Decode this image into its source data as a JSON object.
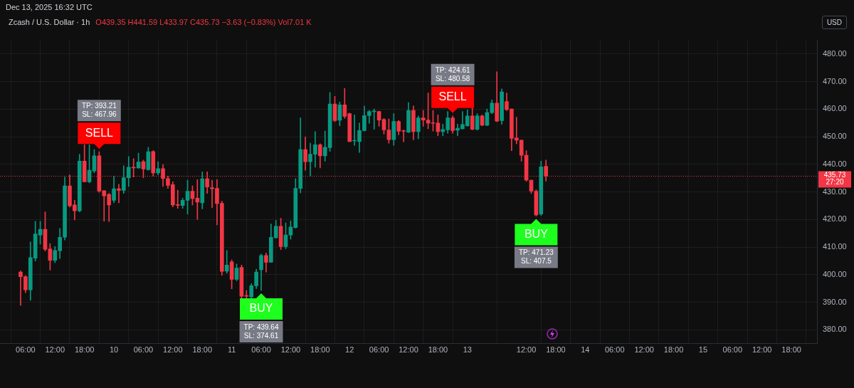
{
  "chart_data": {
    "type": "candlestick",
    "title": "Dec 13, 2025 16:32 UTC",
    "subtitle": "Zcash / U.S. Dollar · 1h",
    "x": [
      "2025-12-09T05:00",
      "2025-12-09T06:00",
      "2025-12-09T07:00",
      "2025-12-09T08:00",
      "2025-12-09T09:00",
      "2025-12-09T10:00",
      "2025-12-09T11:00",
      "2025-12-09T12:00",
      "2025-12-09T13:00",
      "2025-12-09T14:00",
      "2025-12-09T15:00",
      "2025-12-09T16:00",
      "2025-12-09T17:00",
      "2025-12-09T18:00",
      "2025-12-09T19:00",
      "2025-12-09T20:00",
      "2025-12-09T21:00",
      "2025-12-09T22:00",
      "2025-12-09T23:00",
      "2025-12-10T00:00",
      "2025-12-10T01:00",
      "2025-12-10T02:00",
      "2025-12-10T03:00",
      "2025-12-10T04:00",
      "2025-12-10T05:00",
      "2025-12-10T06:00",
      "2025-12-10T07:00",
      "2025-12-10T08:00",
      "2025-12-10T09:00",
      "2025-12-10T10:00",
      "2025-12-10T11:00",
      "2025-12-10T12:00",
      "2025-12-10T13:00",
      "2025-12-10T14:00",
      "2025-12-10T15:00",
      "2025-12-10T16:00",
      "2025-12-10T17:00",
      "2025-12-10T18:00",
      "2025-12-10T19:00",
      "2025-12-10T20:00",
      "2025-12-10T21:00",
      "2025-12-10T22:00",
      "2025-12-10T23:00",
      "2025-12-11T00:00",
      "2025-12-11T01:00",
      "2025-12-11T02:00",
      "2025-12-11T03:00",
      "2025-12-11T04:00",
      "2025-12-11T05:00",
      "2025-12-11T06:00",
      "2025-12-11T07:00",
      "2025-12-11T08:00",
      "2025-12-11T09:00",
      "2025-12-11T10:00",
      "2025-12-11T11:00",
      "2025-12-11T12:00",
      "2025-12-11T13:00",
      "2025-12-11T14:00",
      "2025-12-11T15:00",
      "2025-12-11T16:00",
      "2025-12-11T17:00",
      "2025-12-11T18:00",
      "2025-12-11T19:00",
      "2025-12-11T20:00",
      "2025-12-11T21:00",
      "2025-12-11T22:00",
      "2025-12-11T23:00",
      "2025-12-12T00:00",
      "2025-12-12T01:00",
      "2025-12-12T02:00",
      "2025-12-12T03:00",
      "2025-12-12T04:00",
      "2025-12-12T05:00",
      "2025-12-12T06:00",
      "2025-12-12T07:00",
      "2025-12-12T08:00",
      "2025-12-12T09:00",
      "2025-12-12T10:00",
      "2025-12-12T11:00",
      "2025-12-12T12:00",
      "2025-12-12T13:00",
      "2025-12-12T14:00",
      "2025-12-12T15:00",
      "2025-12-12T16:00",
      "2025-12-12T17:00",
      "2025-12-12T18:00",
      "2025-12-12T19:00",
      "2025-12-12T20:00",
      "2025-12-12T21:00",
      "2025-12-12T22:00",
      "2025-12-12T23:00",
      "2025-12-13T00:00",
      "2025-12-13T01:00",
      "2025-12-13T02:00",
      "2025-12-13T03:00",
      "2025-12-13T04:00",
      "2025-12-13T05:00",
      "2025-12-13T06:00",
      "2025-12-13T07:00",
      "2025-12-13T08:00",
      "2025-12-13T09:00",
      "2025-12-13T10:00",
      "2025-12-13T11:00",
      "2025-12-13T12:00",
      "2025-12-13T13:00",
      "2025-12-13T14:00",
      "2025-12-13T15:00",
      "2025-12-13T16:00"
    ],
    "ohlc": [
      [
        401.0,
        401.4,
        388.9,
        399.3
      ],
      [
        399.3,
        399.7,
        393.5,
        394.5
      ],
      [
        394.5,
        411.9,
        390.7,
        406.2
      ],
      [
        406.0,
        419.4,
        405.0,
        414.8
      ],
      [
        414.4,
        419.4,
        411.1,
        416.5
      ],
      [
        416.5,
        422.8,
        408.6,
        409.2
      ],
      [
        409.4,
        411.3,
        401.7,
        405.2
      ],
      [
        405.2,
        410.2,
        404.4,
        408.8
      ],
      [
        408.7,
        416.8,
        405.9,
        413.6
      ],
      [
        413.6,
        435.4,
        412.6,
        432.2
      ],
      [
        432.2,
        436.2,
        424.5,
        425.0
      ],
      [
        425.3,
        427.0,
        419.9,
        423.2
      ],
      [
        423.2,
        443.7,
        422.8,
        441.2
      ],
      [
        441.2,
        447.1,
        433.7,
        433.7
      ],
      [
        433.7,
        447.1,
        433.3,
        437.9
      ],
      [
        437.6,
        445.4,
        437.0,
        443.1
      ],
      [
        443.1,
        444.6,
        429.9,
        430.3
      ],
      [
        430.5,
        430.5,
        419.4,
        428.6
      ],
      [
        429.1,
        429.5,
        419.3,
        425.3
      ],
      [
        427.0,
        435.8,
        426.1,
        431.2
      ],
      [
        431.2,
        432.8,
        426.1,
        430.6
      ],
      [
        430.6,
        439.5,
        429.5,
        435.2
      ],
      [
        435.1,
        442.9,
        432.0,
        439.0
      ],
      [
        439.0,
        442.1,
        435.4,
        438.7
      ],
      [
        438.7,
        444.1,
        438.5,
        440.9
      ],
      [
        441.0,
        441.6,
        435.2,
        438.3
      ],
      [
        438.1,
        446.2,
        437.9,
        444.6
      ],
      [
        444.7,
        445.0,
        435.8,
        436.9
      ],
      [
        436.9,
        441.0,
        436.2,
        438.5
      ],
      [
        438.5,
        440.0,
        432.0,
        434.9
      ],
      [
        434.9,
        435.8,
        431.3,
        432.4
      ],
      [
        432.7,
        433.7,
        424.6,
        425.3
      ],
      [
        425.4,
        430.7,
        424.1,
        425.2
      ],
      [
        425.1,
        427.8,
        424.1,
        427.0
      ],
      [
        427.0,
        434.3,
        422.0,
        430.3
      ],
      [
        430.3,
        432.2,
        425.3,
        427.6
      ],
      [
        427.8,
        434.5,
        420.1,
        426.3
      ],
      [
        426.1,
        437.3,
        423.9,
        434.8
      ],
      [
        434.8,
        437.3,
        429.5,
        431.8
      ],
      [
        431.6,
        434.3,
        424.3,
        431.2
      ],
      [
        431.3,
        434.5,
        418.1,
        425.8
      ],
      [
        425.9,
        426.7,
        399.8,
        401.2
      ],
      [
        401.3,
        408.8,
        400.6,
        403.5
      ],
      [
        404.7,
        405.4,
        394.9,
        398.3
      ],
      [
        398.3,
        403.9,
        397.8,
        402.4
      ],
      [
        402.7,
        403.5,
        391.0,
        392.2
      ],
      [
        392.4,
        394.3,
        391.0,
        392.2
      ],
      [
        392.0,
        396.8,
        391.4,
        396.0
      ],
      [
        396.0,
        402.0,
        395.0,
        401.0
      ],
      [
        401.8,
        407.5,
        394.3,
        407.0
      ],
      [
        407.0,
        407.9,
        401.0,
        404.5
      ],
      [
        404.5,
        418.4,
        404.5,
        413.6
      ],
      [
        413.4,
        419.7,
        413.2,
        417.6
      ],
      [
        417.6,
        420.5,
        409.1,
        410.2
      ],
      [
        410.2,
        418.8,
        409.4,
        414.4
      ],
      [
        414.4,
        419.5,
        412.9,
        417.3
      ],
      [
        417.1,
        434.9,
        416.9,
        431.3
      ],
      [
        431.3,
        456.9,
        429.7,
        445.4
      ],
      [
        445.4,
        450.0,
        437.9,
        441.0
      ],
      [
        441.0,
        447.7,
        435.8,
        443.7
      ],
      [
        443.7,
        451.9,
        439.0,
        447.1
      ],
      [
        447.1,
        447.5,
        438.7,
        443.1
      ],
      [
        443.1,
        452.1,
        441.2,
        446.2
      ],
      [
        446.1,
        466.1,
        444.7,
        461.9
      ],
      [
        461.9,
        464.7,
        455.5,
        455.9
      ],
      [
        456.0,
        462.6,
        454.0,
        461.6
      ],
      [
        461.6,
        467.6,
        456.7,
        457.4
      ],
      [
        458.4,
        458.6,
        448.3,
        448.3
      ],
      [
        448.5,
        458.0,
        446.9,
        448.7
      ],
      [
        448.3,
        455.0,
        444.3,
        452.3
      ],
      [
        452.3,
        461.1,
        452.1,
        457.7
      ],
      [
        457.7,
        459.6,
        454.9,
        459.2
      ],
      [
        459.1,
        460.1,
        452.8,
        459.3
      ],
      [
        459.2,
        459.3,
        453.8,
        456.1
      ],
      [
        456.3,
        456.7,
        451.0,
        452.5
      ],
      [
        452.5,
        456.5,
        447.7,
        449.0
      ],
      [
        449.0,
        458.4,
        446.9,
        455.6
      ],
      [
        455.6,
        455.9,
        450.7,
        452.0
      ],
      [
        452.2,
        452.5,
        448.2,
        452.0
      ],
      [
        451.7,
        462.4,
        451.5,
        459.6
      ],
      [
        459.6,
        461.2,
        448.9,
        451.9
      ],
      [
        451.9,
        457.6,
        449.3,
        456.9
      ],
      [
        456.9,
        459.6,
        453.8,
        456.1
      ],
      [
        456.1,
        465.9,
        452.9,
        455.0
      ],
      [
        455.1,
        459.6,
        452.1,
        454.9
      ],
      [
        455.0,
        458.0,
        450.4,
        451.9
      ],
      [
        451.9,
        454.6,
        450.4,
        452.7
      ],
      [
        452.5,
        459.2,
        451.3,
        456.9
      ],
      [
        456.9,
        457.6,
        451.3,
        452.3
      ],
      [
        452.4,
        454.6,
        450.4,
        453.1
      ],
      [
        452.9,
        459.2,
        452.8,
        454.5
      ],
      [
        454.0,
        459.8,
        453.8,
        457.6
      ],
      [
        457.6,
        460.5,
        452.5,
        452.7
      ],
      [
        452.7,
        458.4,
        452.4,
        457.6
      ],
      [
        457.6,
        458.0,
        454.0,
        454.2
      ],
      [
        454.2,
        460.1,
        454.0,
        458.8
      ],
      [
        458.8,
        463.4,
        458.4,
        462.2
      ],
      [
        462.2,
        473.6,
        455.5,
        455.7
      ],
      [
        455.9,
        467.4,
        454.5,
        466.3
      ],
      [
        462.8,
        465.9,
        459.5,
        459.9
      ],
      [
        460.1,
        460.1,
        445.0,
        449.4
      ],
      [
        449.6,
        457.1,
        447.5,
        448.8
      ],
      [
        448.8,
        448.8,
        441.2,
        443.3
      ],
      [
        443.3,
        445.0,
        433.9,
        434.3
      ],
      [
        434.3,
        434.3,
        429.5,
        430.3
      ],
      [
        430.3,
        430.8,
        421.3,
        421.7
      ],
      [
        422.0,
        441.2,
        421.5,
        439.1
      ],
      [
        439.35,
        441.59,
        433.97,
        435.73
      ]
    ],
    "colors": [
      "#f23645",
      "#f23645",
      "#089981",
      "#089981",
      "#089981",
      "#f23645",
      "#f23645",
      "#089981",
      "#089981",
      "#089981",
      "#f23645",
      "#f23645",
      "#089981",
      "#f23645",
      "#089981",
      "#089981",
      "#f23645",
      "#f23645",
      "#f23645",
      "#089981",
      "#f23645",
      "#089981",
      "#089981",
      "#f23645",
      "#089981",
      "#f23645",
      "#089981",
      "#f23645",
      "#089981",
      "#f23645",
      "#f23645",
      "#f23645",
      "#f23645",
      "#089981",
      "#089981",
      "#f23645",
      "#f23645",
      "#089981",
      "#f23645",
      "#f23645",
      "#f23645",
      "#f23645",
      "#089981",
      "#f23645",
      "#089981",
      "#f23645",
      "#f23645",
      "#089981",
      "#089981",
      "#089981",
      "#f23645",
      "#089981",
      "#089981",
      "#f23645",
      "#089981",
      "#089981",
      "#089981",
      "#089981",
      "#f23645",
      "#089981",
      "#089981",
      "#f23645",
      "#089981",
      "#089981",
      "#f23645",
      "#089981",
      "#f23645",
      "#f23645",
      "#089981",
      "#089981",
      "#089981",
      "#089981",
      "#089981",
      "#f23645",
      "#f23645",
      "#f23645",
      "#089981",
      "#f23645",
      "#f23645",
      "#089981",
      "#f23645",
      "#089981",
      "#f23645",
      "#f23645",
      "#f23645",
      "#f23645",
      "#089981",
      "#089981",
      "#f23645",
      "#089981",
      "#089981",
      "#089981",
      "#f23645",
      "#089981",
      "#f23645",
      "#089981",
      "#089981",
      "#f23645",
      "#089981",
      "#f23645",
      "#f23645",
      "#f23645",
      "#f23645",
      "#f23645",
      "#f23645",
      "#f23645",
      "#089981",
      "#f23645"
    ],
    "xlim": [
      "2025-12-09T04:00",
      "2025-12-15T20:00"
    ],
    "xticks": [
      {
        "value": "2025-12-09T06:00",
        "label": "06:00"
      },
      {
        "value": "2025-12-09T12:00",
        "label": "12:00"
      },
      {
        "value": "2025-12-09T18:00",
        "label": "18:00"
      },
      {
        "value": "2025-12-10T00:00",
        "label": "10"
      },
      {
        "value": "2025-12-10T06:00",
        "label": "06:00"
      },
      {
        "value": "2025-12-10T12:00",
        "label": "12:00"
      },
      {
        "value": "2025-12-10T18:00",
        "label": "18:00"
      },
      {
        "value": "2025-12-11T00:00",
        "label": "11"
      },
      {
        "value": "2025-12-11T06:00",
        "label": "06:00"
      },
      {
        "value": "2025-12-11T12:00",
        "label": "12:00"
      },
      {
        "value": "2025-12-11T18:00",
        "label": "18:00"
      },
      {
        "value": "2025-12-12T00:00",
        "label": "12"
      },
      {
        "value": "2025-12-12T06:00",
        "label": "06:00"
      },
      {
        "value": "2025-12-12T12:00",
        "label": "12:00"
      },
      {
        "value": "2025-12-12T18:00",
        "label": "18:00"
      },
      {
        "value": "2025-12-13T00:00",
        "label": "13"
      },
      {
        "value": "2025-12-13T12:00",
        "label": "12:00"
      },
      {
        "value": "2025-12-13T18:00",
        "label": "18:00"
      },
      {
        "value": "2025-12-14T00:00",
        "label": "14"
      },
      {
        "value": "2025-12-14T06:00",
        "label": "06:00"
      },
      {
        "value": "2025-12-14T12:00",
        "label": "12:00"
      },
      {
        "value": "2025-12-14T18:00",
        "label": "18:00"
      },
      {
        "value": "2025-12-15T00:00",
        "label": "15"
      },
      {
        "value": "2025-12-15T06:00",
        "label": "06:00"
      },
      {
        "value": "2025-12-15T12:00",
        "label": "12:00"
      },
      {
        "value": "2025-12-15T18:00",
        "label": "18:00"
      }
    ],
    "ylim": [
      375,
      485
    ],
    "yticks": [
      {
        "value": 380,
        "label": "380.00"
      },
      {
        "value": 390,
        "label": "390.00"
      },
      {
        "value": 400,
        "label": "400.00"
      },
      {
        "value": 410,
        "label": "410.00"
      },
      {
        "value": 420,
        "label": "420.00"
      },
      {
        "value": 430,
        "label": "430.00"
      },
      {
        "value": 440,
        "label": "440.00"
      },
      {
        "value": 450,
        "label": "450.00"
      },
      {
        "value": 460,
        "label": "460.00"
      },
      {
        "value": 470,
        "label": "470.00"
      },
      {
        "value": 480,
        "label": "480.00"
      }
    ],
    "grid": true,
    "ref_lines": [
      {
        "axis": "y",
        "value": 435.73,
        "label": "435.73",
        "color": "#f23645",
        "line_style": "dotted"
      }
    ],
    "annotations": [
      "O439.35 H441.59 L433.97 C435.73 −3.63 (−0.83%) Vol7.01 K",
      "27:20",
      "USD",
      {
        "text": "SELL",
        "x": "2025-12-09T21:00",
        "y": 444.6
      },
      "TP: 393.21\nSL: 467.96",
      {
        "text": "BUY",
        "x": "2025-12-11T06:00",
        "y": 394.3
      },
      "TP: 439.64\nSL: 374.61",
      {
        "text": "SELL",
        "x": "2025-12-12T21:00",
        "y": 457.6
      },
      "TP: 424.61\nSL: 480.58",
      {
        "text": "BUY",
        "x": "2025-12-13T14:00",
        "y": 421.3
      },
      "TP: 471.23\nSL: 407.5"
    ]
  }
}
